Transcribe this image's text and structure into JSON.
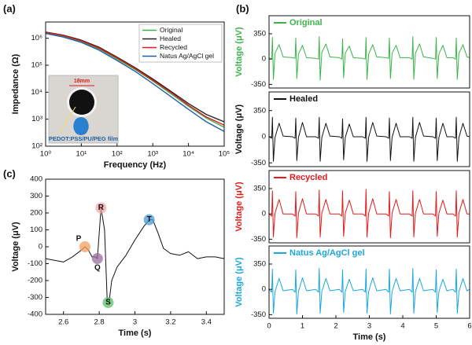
{
  "chart_data": [
    {
      "type": "line",
      "panel_label": "(a)",
      "xlabel": "Frequency (Hz)",
      "ylabel": "Impedance (Ω)",
      "log_x": true,
      "log_y": true,
      "xlim": [
        1,
        100000
      ],
      "ylim": [
        100,
        4000000
      ],
      "xticks": [
        {
          "value": 1,
          "label": "10⁰"
        },
        {
          "value": 10,
          "label": "10¹"
        },
        {
          "value": 100,
          "label": "10²"
        },
        {
          "value": 1000,
          "label": "10³"
        },
        {
          "value": 10000,
          "label": "10⁴"
        },
        {
          "value": 100000,
          "label": "10⁵"
        }
      ],
      "yticks": [
        {
          "value": 100,
          "label": "10²"
        },
        {
          "value": 1000,
          "label": "10³"
        },
        {
          "value": 10000,
          "label": "10⁴"
        },
        {
          "value": 100000,
          "label": "10⁵"
        },
        {
          "value": 1000000,
          "label": "10⁶"
        }
      ],
      "legend": "upper right",
      "inset": {
        "scale_label": "18mm",
        "caption": "PEDOT:PSS/PU/PEG film"
      },
      "x": [
        1,
        3.16,
        10,
        31.6,
        100,
        316,
        1000,
        3162,
        10000,
        31623,
        100000
      ],
      "series": [
        {
          "name": "Original",
          "color": "#3cb44b",
          "values": [
            1600000,
            1200000,
            750000,
            400000,
            170000,
            70000,
            26000,
            9000,
            3000,
            1100,
            500
          ]
        },
        {
          "name": "Healed",
          "color": "#222222",
          "values": [
            1700000,
            1300000,
            850000,
            460000,
            200000,
            82000,
            31000,
            11000,
            3800,
            1500,
            800
          ]
        },
        {
          "name": "Recycled",
          "color": "#e41a1c",
          "values": [
            1650000,
            1250000,
            800000,
            430000,
            185000,
            76000,
            28000,
            10000,
            3300,
            1200,
            600
          ]
        },
        {
          "name": "Natus Ag/AgCl gel",
          "color": "#1f5fa8",
          "values": [
            1500000,
            1100000,
            700000,
            360000,
            150000,
            60000,
            21000,
            7000,
            2300,
            800,
            350
          ]
        }
      ]
    },
    {
      "type": "line",
      "panel_label": "(b)",
      "ylabel": "Voltage (μV)",
      "xlim": [
        0,
        6
      ],
      "ylim": [
        -400,
        600
      ],
      "yticks": [
        -350,
        0,
        350
      ],
      "legend": "upper left",
      "x": [
        0,
        0.08,
        0.1,
        0.13,
        0.18,
        0.3,
        0.42,
        0.7,
        0.78,
        0.8,
        0.83,
        0.88,
        1.0,
        1.12,
        1.4,
        1.48,
        1.5,
        1.53,
        1.58,
        1.7,
        1.82,
        2.1,
        2.18,
        2.2,
        2.23,
        2.28,
        2.4,
        2.52,
        2.8,
        2.88,
        2.9,
        2.93,
        2.98,
        3.1,
        3.22,
        3.5,
        3.58,
        3.6,
        3.63,
        3.68,
        3.8,
        3.92,
        4.2,
        4.28,
        4.3,
        4.33,
        4.38,
        4.5,
        4.62,
        4.9,
        4.98,
        5.0,
        5.03,
        5.08,
        5.2,
        5.32,
        5.5,
        5.58,
        5.6,
        5.63,
        5.68,
        5.8,
        5.92,
        6.0
      ],
      "series": [
        {
          "name": "Original",
          "color": "#3cb44b",
          "values": [
            20,
            0,
            300,
            -280,
            80,
            200,
            30,
            20,
            10,
            290,
            -270,
            70,
            190,
            20,
            10,
            0,
            310,
            -290,
            90,
            210,
            30,
            20,
            0,
            280,
            -260,
            80,
            180,
            20,
            10,
            0,
            300,
            -280,
            70,
            200,
            30,
            20,
            10,
            290,
            -270,
            80,
            190,
            20,
            20,
            0,
            310,
            -280,
            80,
            210,
            30,
            10,
            0,
            300,
            -270,
            70,
            190,
            20,
            20,
            0,
            290,
            -280,
            80,
            200,
            30,
            20
          ]
        }
      ]
    },
    {
      "type": "line",
      "ylabel": "Voltage (μV)",
      "xlim": [
        0,
        6
      ],
      "ylim": [
        -400,
        600
      ],
      "yticks": [
        -350,
        0,
        350
      ],
      "legend": "upper left",
      "x": [
        0,
        0.08,
        0.1,
        0.13,
        0.18,
        0.3,
        0.42,
        0.7,
        0.78,
        0.8,
        0.83,
        0.88,
        1.0,
        1.12,
        1.4,
        1.48,
        1.5,
        1.53,
        1.58,
        1.7,
        1.82,
        2.1,
        2.18,
        2.2,
        2.23,
        2.28,
        2.4,
        2.52,
        2.8,
        2.88,
        2.9,
        2.93,
        2.98,
        3.1,
        3.22,
        3.5,
        3.58,
        3.6,
        3.63,
        3.68,
        3.8,
        3.92,
        4.2,
        4.28,
        4.3,
        4.33,
        4.38,
        4.5,
        4.62,
        4.9,
        4.98,
        5.0,
        5.03,
        5.08,
        5.2,
        5.32,
        5.5,
        5.58,
        5.6,
        5.63,
        5.68,
        5.8,
        5.92,
        6.0
      ],
      "series": [
        {
          "name": "Healed",
          "color": "#111111",
          "values": [
            0,
            -20,
            260,
            -330,
            -10,
            180,
            10,
            0,
            -20,
            250,
            -320,
            -10,
            190,
            0,
            0,
            -20,
            260,
            -330,
            -10,
            180,
            10,
            0,
            -20,
            240,
            -310,
            -10,
            170,
            0,
            0,
            -20,
            260,
            -330,
            -10,
            190,
            10,
            0,
            -20,
            250,
            -320,
            -10,
            180,
            0,
            0,
            -20,
            260,
            -330,
            -10,
            190,
            10,
            0,
            -20,
            250,
            -320,
            -10,
            180,
            0,
            0,
            -20,
            260,
            -330,
            -10,
            180,
            10,
            0
          ]
        }
      ]
    },
    {
      "type": "line",
      "ylabel": "Voltage (μV)",
      "xlim": [
        0,
        6
      ],
      "ylim": [
        -400,
        600
      ],
      "yticks": [
        -350,
        0,
        350
      ],
      "legend": "upper left",
      "x": [
        0,
        0.08,
        0.1,
        0.13,
        0.18,
        0.3,
        0.42,
        0.7,
        0.78,
        0.8,
        0.83,
        0.88,
        1.0,
        1.12,
        1.4,
        1.48,
        1.5,
        1.53,
        1.58,
        1.7,
        1.82,
        2.1,
        2.18,
        2.2,
        2.23,
        2.28,
        2.4,
        2.52,
        2.8,
        2.88,
        2.9,
        2.93,
        2.98,
        3.1,
        3.22,
        3.5,
        3.58,
        3.6,
        3.63,
        3.68,
        3.8,
        3.92,
        4.2,
        4.28,
        4.3,
        4.33,
        4.38,
        4.5,
        4.62,
        4.9,
        4.98,
        5.0,
        5.03,
        5.08,
        5.2,
        5.32,
        5.5,
        5.58,
        5.6,
        5.63,
        5.68,
        5.8,
        5.92,
        6.0
      ],
      "series": [
        {
          "name": "Recycled",
          "color": "#e41a1c",
          "values": [
            0,
            -30,
            320,
            -320,
            10,
            200,
            0,
            0,
            -30,
            310,
            -330,
            10,
            210,
            0,
            0,
            -30,
            330,
            -320,
            10,
            200,
            0,
            0,
            -30,
            320,
            -310,
            10,
            190,
            0,
            0,
            -30,
            340,
            -320,
            10,
            210,
            0,
            0,
            -30,
            310,
            -330,
            10,
            200,
            0,
            0,
            -30,
            320,
            -320,
            10,
            200,
            0,
            0,
            -30,
            310,
            -310,
            10,
            190,
            0,
            0,
            -30,
            320,
            -320,
            10,
            200,
            0,
            0
          ]
        }
      ]
    },
    {
      "type": "line",
      "ylabel": "Voltage (μV)",
      "xlabel": "Time (s)",
      "xlim": [
        0,
        6
      ],
      "ylim": [
        -400,
        600
      ],
      "xticks": [
        0,
        1,
        2,
        3,
        4,
        5,
        6
      ],
      "yticks": [
        -350,
        0,
        350
      ],
      "legend": "upper left",
      "x": [
        0,
        0.08,
        0.1,
        0.13,
        0.18,
        0.3,
        0.42,
        0.7,
        0.78,
        0.8,
        0.83,
        0.88,
        1.0,
        1.12,
        1.4,
        1.48,
        1.5,
        1.53,
        1.58,
        1.7,
        1.82,
        2.1,
        2.18,
        2.2,
        2.23,
        2.28,
        2.4,
        2.52,
        2.8,
        2.88,
        2.9,
        2.93,
        2.98,
        3.1,
        3.22,
        3.5,
        3.58,
        3.6,
        3.63,
        3.68,
        3.8,
        3.92,
        4.2,
        4.28,
        4.3,
        4.33,
        4.38,
        4.5,
        4.62,
        4.9,
        4.98,
        5.0,
        5.03,
        5.08,
        5.2,
        5.32,
        5.5,
        5.58,
        5.6,
        5.63,
        5.68,
        5.8,
        5.92,
        6.0
      ],
      "series": [
        {
          "name": "Natus Ag/AgCl gel",
          "color": "#1aa7dc",
          "values": [
            0,
            -40,
            280,
            -330,
            -30,
            150,
            -20,
            0,
            -40,
            270,
            -340,
            -30,
            160,
            -20,
            0,
            -40,
            290,
            -330,
            -30,
            150,
            -20,
            0,
            -40,
            270,
            -320,
            -30,
            140,
            -20,
            0,
            -40,
            280,
            -330,
            -30,
            160,
            -20,
            0,
            -40,
            280,
            -340,
            -30,
            150,
            -20,
            0,
            -40,
            290,
            -330,
            -30,
            150,
            -20,
            0,
            -40,
            270,
            -320,
            -30,
            140,
            -20,
            0,
            -40,
            280,
            -330,
            -30,
            150,
            -20,
            0
          ]
        }
      ]
    },
    {
      "type": "line",
      "panel_label": "(c)",
      "xlabel": "Time (s)",
      "ylabel": "Voltage (μV)",
      "xlim": [
        2.5,
        3.5
      ],
      "ylim": [
        -400,
        400
      ],
      "xticks": [
        2.6,
        2.8,
        3.0,
        3.2,
        3.4
      ],
      "yticks": [
        -400,
        -300,
        -200,
        -100,
        0,
        100,
        200,
        300,
        400
      ],
      "x": [
        2.5,
        2.55,
        2.6,
        2.65,
        2.7,
        2.72,
        2.74,
        2.76,
        2.78,
        2.79,
        2.81,
        2.83,
        2.845,
        2.855,
        2.87,
        2.9,
        2.95,
        3.0,
        3.05,
        3.08,
        3.1,
        3.13,
        3.16,
        3.2,
        3.25,
        3.3,
        3.35,
        3.4,
        3.45,
        3.5
      ],
      "series": [
        {
          "name": "ECG",
          "color": "#111111",
          "values": [
            -70,
            -80,
            -90,
            -60,
            -20,
            0,
            -20,
            -60,
            -60,
            -70,
            230,
            100,
            -320,
            -330,
            -200,
            -120,
            -50,
            40,
            120,
            160,
            160,
            80,
            -10,
            -40,
            -50,
            -30,
            -70,
            -60,
            -60,
            -70
          ]
        }
      ],
      "annotations": [
        {
          "label": "P",
          "x": 2.72,
          "y": 0,
          "color": "#f4a060"
        },
        {
          "label": "Q",
          "x": 2.79,
          "y": -70,
          "color": "#9b6b9e"
        },
        {
          "label": "R",
          "x": 2.81,
          "y": 230,
          "color": "#f4a6a6"
        },
        {
          "label": "S",
          "x": 2.85,
          "y": -330,
          "color": "#5cbf6a"
        },
        {
          "label": "T",
          "x": 3.08,
          "y": 160,
          "color": "#4a9bd6"
        }
      ]
    }
  ]
}
